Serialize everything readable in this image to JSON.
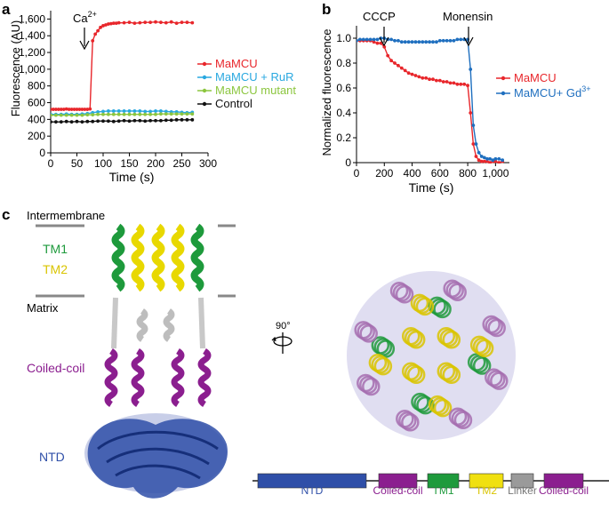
{
  "panels": {
    "a": {
      "letter": "a",
      "ca_annotation": "Ca",
      "ca_superscript": "2+",
      "legend": [
        "MaMCU",
        "MaMCU + RuR",
        "MaMCU mutant",
        "Control"
      ]
    },
    "b": {
      "letter": "b",
      "cccp_annotation": "CCCP",
      "monensin_annotation": "Monensin",
      "legend": [
        "MaMCU",
        "MaMCU+ Gd",
        "3+"
      ]
    },
    "c": {
      "letter": "c",
      "labels": {
        "intermembrane": "Intermembrane",
        "tm1": "TM1",
        "tm2": "TM2",
        "matrix": "Matrix",
        "coiled_coil": "Coiled-coil",
        "ntd": "NTD",
        "rotation": "90°"
      },
      "domain_bar": [
        {
          "label": "NTD",
          "color": "#2f4fa8"
        },
        {
          "label": "Coiled-coil",
          "color": "#8b1e8f"
        },
        {
          "label": "TM1",
          "color": "#1e9a3c"
        },
        {
          "label": "TM2",
          "color": "#f0e010"
        },
        {
          "label": "Linker",
          "color": "#9a9a9a"
        },
        {
          "label": "Coiled-coil",
          "color": "#8b1e8f"
        }
      ]
    }
  },
  "colors": {
    "mamcu": "#e8262b",
    "rur": "#29a8e0",
    "mutant": "#8cc63f",
    "control": "#111111",
    "gd": "#1f6fbf",
    "tm1": "#1e9a3c",
    "tm2": "#d9c400",
    "coil": "#8b1e8f",
    "ntd": "#2f4fa8"
  },
  "chart_data": [
    {
      "type": "line",
      "panel": "a",
      "xlabel": "Time (s)",
      "ylabel": "Fluorescence (AU)",
      "xlim": [
        0,
        300
      ],
      "ylim": [
        0,
        1700
      ],
      "xticks": [
        "0",
        "50",
        "100",
        "150",
        "200",
        "250",
        "300"
      ],
      "yticks": [
        "0",
        "200",
        "400",
        "600",
        "800",
        "1,000",
        "1,200",
        "1,400",
        "1,600"
      ],
      "grid": false,
      "legend_position": "right",
      "series": [
        {
          "name": "MaMCU",
          "color": "#e8262b",
          "x": [
            0,
            5,
            10,
            15,
            20,
            25,
            30,
            35,
            40,
            45,
            50,
            55,
            60,
            65,
            70,
            75,
            80,
            85,
            90,
            95,
            100,
            105,
            110,
            115,
            120,
            125,
            130,
            140,
            150,
            160,
            170,
            180,
            190,
            200,
            210,
            220,
            230,
            240,
            250,
            260,
            270
          ],
          "y": [
            520,
            520,
            520,
            520,
            520,
            520,
            525,
            520,
            520,
            520,
            520,
            520,
            520,
            520,
            520,
            525,
            1340,
            1420,
            1460,
            1500,
            1520,
            1530,
            1540,
            1545,
            1550,
            1550,
            1555,
            1555,
            1560,
            1550,
            1555,
            1560,
            1560,
            1565,
            1560,
            1555,
            1565,
            1550,
            1560,
            1560,
            1555
          ]
        },
        {
          "name": "MaMCU + RuR",
          "color": "#29a8e0",
          "x": [
            0,
            10,
            20,
            30,
            40,
            50,
            60,
            70,
            80,
            90,
            100,
            110,
            120,
            130,
            140,
            150,
            160,
            170,
            180,
            190,
            200,
            210,
            220,
            230,
            240,
            250,
            260,
            270
          ],
          "y": [
            460,
            460,
            460,
            465,
            460,
            460,
            465,
            470,
            480,
            490,
            495,
            500,
            500,
            500,
            500,
            500,
            500,
            500,
            495,
            495,
            500,
            500,
            495,
            490,
            490,
            485,
            480,
            485
          ]
        },
        {
          "name": "MaMCU mutant",
          "color": "#8cc63f",
          "x": [
            0,
            10,
            20,
            30,
            40,
            50,
            60,
            70,
            80,
            90,
            100,
            110,
            120,
            130,
            140,
            150,
            160,
            170,
            180,
            190,
            200,
            210,
            220,
            230,
            240,
            250,
            260,
            270
          ],
          "y": [
            450,
            450,
            450,
            450,
            450,
            450,
            450,
            455,
            455,
            460,
            460,
            460,
            460,
            460,
            460,
            460,
            460,
            460,
            460,
            460,
            460,
            465,
            465,
            465,
            465,
            465,
            465,
            465
          ]
        },
        {
          "name": "Control",
          "color": "#111111",
          "x": [
            0,
            10,
            20,
            30,
            40,
            50,
            60,
            70,
            80,
            90,
            100,
            110,
            120,
            130,
            140,
            150,
            160,
            170,
            180,
            190,
            200,
            210,
            220,
            230,
            240,
            250,
            260,
            270
          ],
          "y": [
            370,
            370,
            370,
            375,
            370,
            375,
            370,
            375,
            375,
            380,
            380,
            380,
            375,
            380,
            385,
            380,
            385,
            385,
            380,
            385,
            385,
            385,
            390,
            390,
            395,
            395,
            395,
            395
          ]
        }
      ]
    },
    {
      "type": "line",
      "panel": "b",
      "xlabel": "Time (s)",
      "ylabel": "Normalized fluorescence",
      "xlim": [
        0,
        1100
      ],
      "ylim": [
        0,
        1.1
      ],
      "xticks": [
        "0",
        "200",
        "400",
        "600",
        "800",
        "1,000"
      ],
      "yticks": [
        "0",
        "0.2",
        "0.4",
        "0.6",
        "0.8",
        "1.0"
      ],
      "grid": false,
      "legend_position": "right",
      "series": [
        {
          "name": "MaMCU",
          "color": "#e8262b",
          "x": [
            0,
            25,
            50,
            75,
            100,
            125,
            150,
            175,
            200,
            225,
            250,
            275,
            300,
            325,
            350,
            375,
            400,
            425,
            450,
            475,
            500,
            525,
            550,
            575,
            600,
            625,
            650,
            675,
            700,
            725,
            750,
            775,
            800,
            820,
            840,
            860,
            880,
            900,
            920,
            940,
            960,
            980,
            1000,
            1025,
            1050
          ],
          "y": [
            0.98,
            0.98,
            0.98,
            0.98,
            0.98,
            0.97,
            0.96,
            0.96,
            0.93,
            0.86,
            0.82,
            0.8,
            0.78,
            0.76,
            0.74,
            0.72,
            0.71,
            0.7,
            0.69,
            0.68,
            0.68,
            0.67,
            0.67,
            0.66,
            0.66,
            0.65,
            0.65,
            0.64,
            0.64,
            0.63,
            0.63,
            0.63,
            0.62,
            0.4,
            0.15,
            0.05,
            0.02,
            0.01,
            0.01,
            0.01,
            0.0,
            0.01,
            0.01,
            0.0,
            0.01
          ]
        },
        {
          "name": "MaMCU+ Gd3+",
          "color": "#1f6fbf",
          "x": [
            0,
            25,
            50,
            75,
            100,
            125,
            150,
            175,
            200,
            225,
            250,
            275,
            300,
            325,
            350,
            375,
            400,
            425,
            450,
            475,
            500,
            525,
            550,
            575,
            600,
            625,
            650,
            675,
            700,
            725,
            750,
            775,
            800,
            820,
            840,
            860,
            880,
            900,
            920,
            940,
            960,
            980,
            1000,
            1025,
            1050
          ],
          "y": [
            0.98,
            0.99,
            0.99,
            0.99,
            0.99,
            0.99,
            0.99,
            1.0,
            1.0,
            0.99,
            0.99,
            0.98,
            0.98,
            0.97,
            0.97,
            0.97,
            0.97,
            0.97,
            0.97,
            0.97,
            0.97,
            0.97,
            0.97,
            0.97,
            0.98,
            0.98,
            0.98,
            0.98,
            0.98,
            0.99,
            0.99,
            0.99,
            0.99,
            0.75,
            0.3,
            0.15,
            0.08,
            0.05,
            0.04,
            0.03,
            0.03,
            0.02,
            0.03,
            0.03,
            0.02
          ]
        }
      ]
    }
  ]
}
